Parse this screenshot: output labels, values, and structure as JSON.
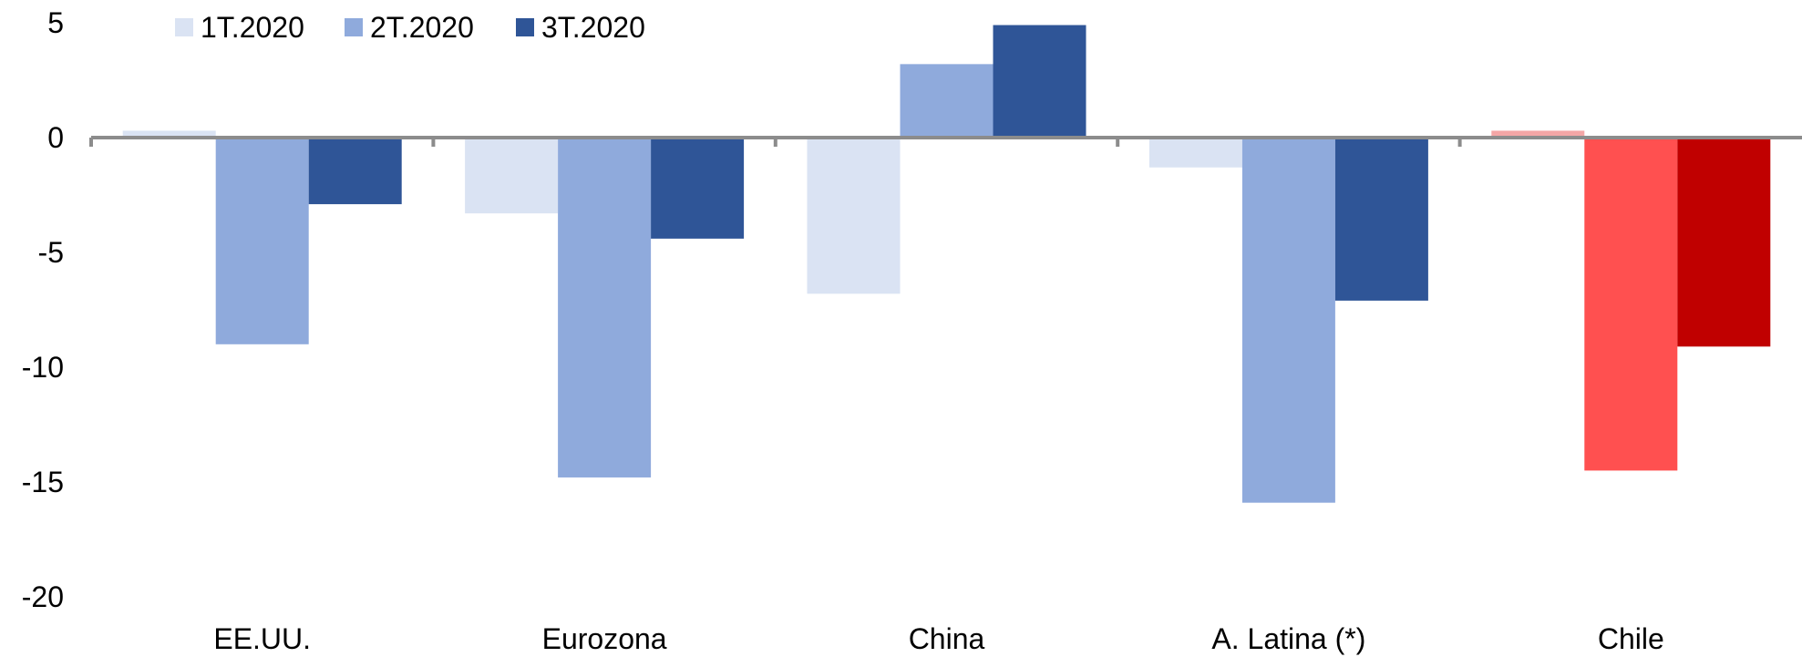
{
  "chart_data": {
    "type": "bar",
    "categories": [
      "EE.UU.",
      "Eurozona",
      "China",
      "A. Latina (*)",
      "Chile"
    ],
    "series": [
      {
        "name": "1T.2020",
        "values": [
          0.3,
          -3.3,
          -6.8,
          -1.3,
          0.3
        ],
        "color": "#DAE3F3"
      },
      {
        "name": "2T.2020",
        "values": [
          -9.0,
          -14.8,
          3.2,
          -15.9,
          -14.5
        ],
        "color": "#8FAADC"
      },
      {
        "name": "3T.2020",
        "values": [
          -2.9,
          -4.4,
          4.9,
          -7.1,
          -9.1
        ],
        "color": "#2F5597"
      }
    ],
    "category_color_overrides": {
      "Chile": [
        "#F4A6A6",
        "#FF5050",
        "#C00000"
      ]
    },
    "ylim": [
      -20,
      5
    ],
    "yticks": [
      5,
      0,
      -5,
      -10,
      -15,
      -20
    ],
    "grid": false,
    "legend_position": "top-left",
    "title": "",
    "xlabel": "",
    "ylabel": ""
  }
}
